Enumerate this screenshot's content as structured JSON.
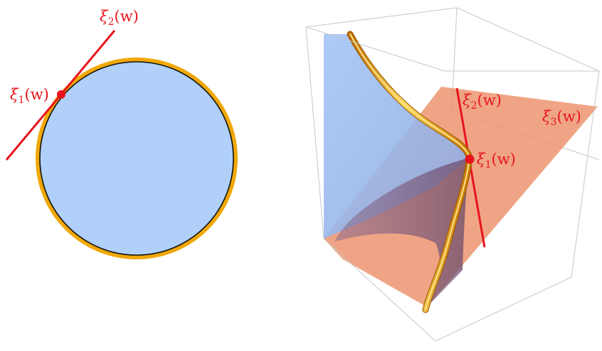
{
  "left_panel": {
    "labels": {
      "point_name": "ξ",
      "point_sub": "1",
      "point_arg": "(w)",
      "line_name": "ξ",
      "line_sub": "2",
      "line_arg": "(w)"
    }
  },
  "right_panel": {
    "labels": {
      "point_name": "ξ",
      "point_sub": "1",
      "point_arg": "(w)",
      "line_name": "ξ",
      "line_sub": "2",
      "line_arg": "(w)",
      "plane_name": "ξ",
      "plane_sub": "3",
      "plane_arg": "(w)"
    }
  },
  "colors": {
    "disk_fill": "#b0d0fa",
    "curve_orange": "#f0a808",
    "accent_red": "#e8141c",
    "plane_salmon": "#ec9570",
    "surface_blue": "#a0c0f0"
  }
}
